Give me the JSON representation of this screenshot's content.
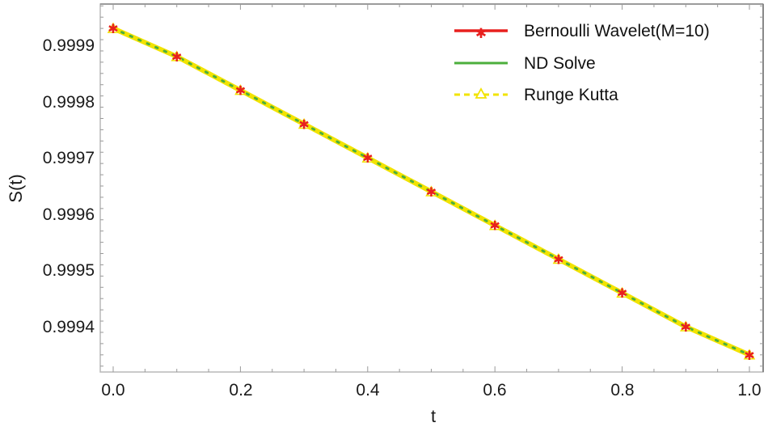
{
  "chart_data": {
    "type": "line",
    "title": "",
    "xlabel": "t",
    "ylabel": "S(t)",
    "xlim": [
      -0.02,
      1.02
    ],
    "ylim": [
      0.99932,
      0.99997
    ],
    "x_ticks": [
      "0.0",
      "0.2",
      "0.4",
      "0.6",
      "0.8",
      "1.0"
    ],
    "y_ticks": [
      "0.9994",
      "0.9995",
      "0.9996",
      "0.9997",
      "0.9998",
      "0.9999"
    ],
    "grid": false,
    "legend_position": "top-right",
    "x": [
      0.0,
      0.1,
      0.2,
      0.3,
      0.4,
      0.5,
      0.6,
      0.7,
      0.8,
      0.9,
      1.0
    ],
    "series": [
      {
        "name": "Bernoulli Wavelet(M=10)",
        "color": "#e8201e",
        "style": "solid-star-markers",
        "values": [
          0.99993,
          0.99988,
          0.99982,
          0.99976,
          0.9997,
          0.99964,
          0.99958,
          0.99952,
          0.99946,
          0.9994,
          0.99935
        ]
      },
      {
        "name": "ND Solve",
        "color": "#4caf3c",
        "style": "solid",
        "values": [
          0.99993,
          0.99988,
          0.99982,
          0.99976,
          0.9997,
          0.99964,
          0.99958,
          0.99952,
          0.99946,
          0.9994,
          0.99935
        ]
      },
      {
        "name": "Runge Kutta",
        "color": "#f2e300",
        "style": "dashed-triangle-markers",
        "values": [
          0.99993,
          0.99988,
          0.99982,
          0.99976,
          0.9997,
          0.99964,
          0.99958,
          0.99952,
          0.99946,
          0.9994,
          0.99935
        ]
      }
    ]
  },
  "legend": {
    "items": [
      {
        "label": "Bernoulli Wavelet(M=10)",
        "color": "#e8201e"
      },
      {
        "label": "ND Solve",
        "color": "#4caf3c"
      },
      {
        "label": "Runge Kutta",
        "color": "#f2e300"
      }
    ]
  },
  "axes": {
    "xlabel": "t",
    "ylabel": "S(t)",
    "x_ticks": [
      "0.0",
      "0.2",
      "0.4",
      "0.6",
      "0.8",
      "1.0"
    ],
    "y_ticks": [
      "0.9999",
      "0.9998",
      "0.9997",
      "0.9996",
      "0.9995",
      "0.9994"
    ]
  }
}
